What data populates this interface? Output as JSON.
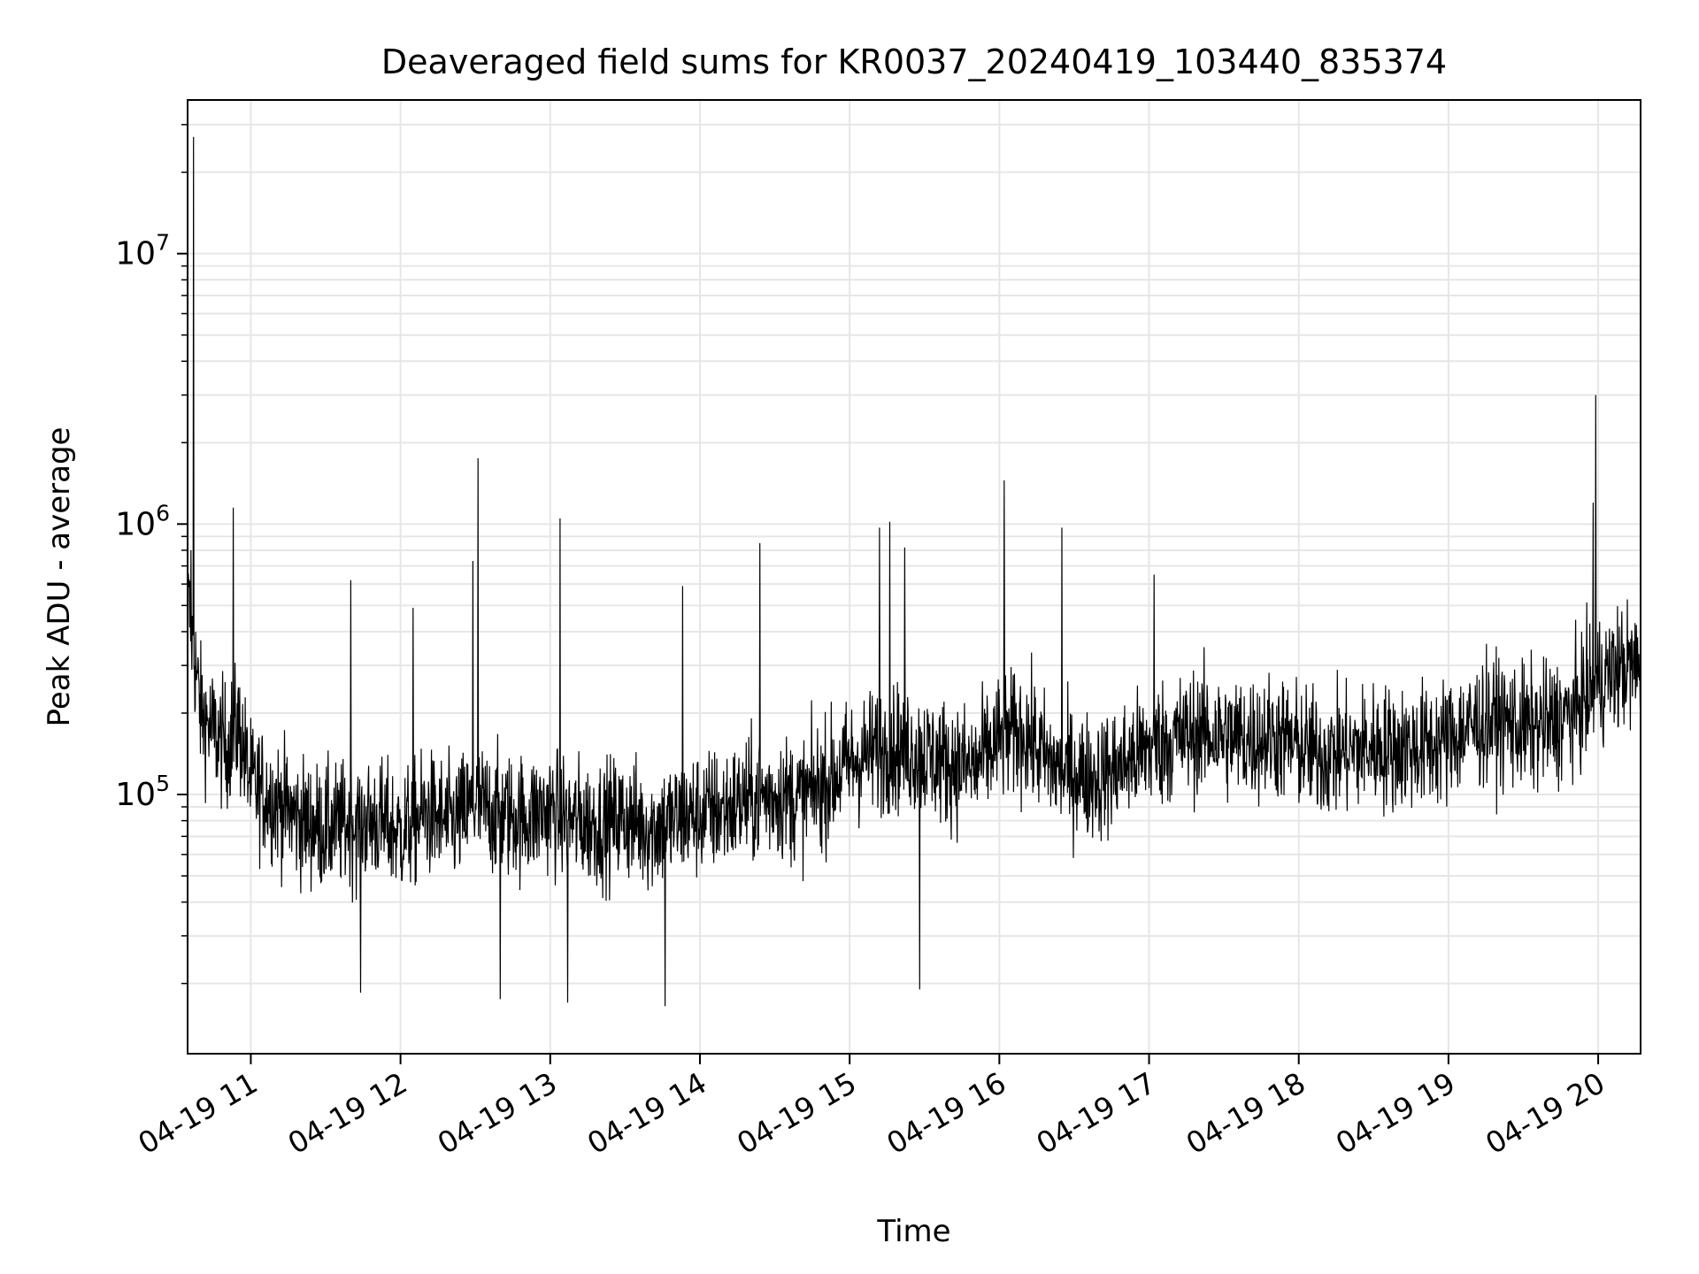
{
  "chart_data": {
    "type": "line",
    "title": "Deaveraged field sums for KR0037_20240419_103440_835374",
    "xlabel": "Time",
    "ylabel": "Peak ADU - average",
    "yscale": "log",
    "ylim": [
      11000,
      37000000
    ],
    "xlim": [
      "2024-04-19T10:34:40",
      "2024-04-19T20:17:00"
    ],
    "xticks": [
      {
        "t": "2024-04-19T11:00:00",
        "label": "04-19 11"
      },
      {
        "t": "2024-04-19T12:00:00",
        "label": "04-19 12"
      },
      {
        "t": "2024-04-19T13:00:00",
        "label": "04-19 13"
      },
      {
        "t": "2024-04-19T14:00:00",
        "label": "04-19 14"
      },
      {
        "t": "2024-04-19T15:00:00",
        "label": "04-19 15"
      },
      {
        "t": "2024-04-19T16:00:00",
        "label": "04-19 16"
      },
      {
        "t": "2024-04-19T17:00:00",
        "label": "04-19 17"
      },
      {
        "t": "2024-04-19T18:00:00",
        "label": "04-19 18"
      },
      {
        "t": "2024-04-19T19:00:00",
        "label": "04-19 19"
      },
      {
        "t": "2024-04-19T20:00:00",
        "label": "04-19 20"
      }
    ],
    "yticks": [
      {
        "v": 100000,
        "base": "10",
        "exp": "5"
      },
      {
        "v": 1000000,
        "base": "10",
        "exp": "6"
      },
      {
        "v": 10000000,
        "base": "10",
        "exp": "7"
      }
    ],
    "grid": true,
    "line_color": "#000000",
    "grid_color": "#e6e6e6",
    "series": [
      {
        "x": [
          "2024-04-19T10:35:00",
          "2024-04-19T10:40:00",
          "2024-04-19T10:45:00",
          "2024-04-19T10:50:00",
          "2024-04-19T10:55:00",
          "2024-04-19T11:00:00",
          "2024-04-19T11:10:00",
          "2024-04-19T11:20:00",
          "2024-04-19T11:30:00",
          "2024-04-19T11:40:00",
          "2024-04-19T11:50:00",
          "2024-04-19T12:00:00",
          "2024-04-19T12:10:00",
          "2024-04-19T12:20:00",
          "2024-04-19T12:30:00",
          "2024-04-19T12:40:00",
          "2024-04-19T12:50:00",
          "2024-04-19T13:00:00",
          "2024-04-19T13:10:00",
          "2024-04-19T13:20:00",
          "2024-04-19T13:30:00",
          "2024-04-19T13:40:00",
          "2024-04-19T13:50:00",
          "2024-04-19T14:00:00",
          "2024-04-19T14:10:00",
          "2024-04-19T14:20:00",
          "2024-04-19T14:30:00",
          "2024-04-19T14:40:00",
          "2024-04-19T14:50:00",
          "2024-04-19T15:00:00",
          "2024-04-19T15:10:00",
          "2024-04-19T15:20:00",
          "2024-04-19T15:30:00",
          "2024-04-19T15:40:00",
          "2024-04-19T15:50:00",
          "2024-04-19T16:00:00",
          "2024-04-19T16:10:00",
          "2024-04-19T16:20:00",
          "2024-04-19T16:30:00",
          "2024-04-19T16:40:00",
          "2024-04-19T16:50:00",
          "2024-04-19T17:00:00",
          "2024-04-19T17:10:00",
          "2024-04-19T17:20:00",
          "2024-04-19T17:30:00",
          "2024-04-19T17:40:00",
          "2024-04-19T17:50:00",
          "2024-04-19T18:00:00",
          "2024-04-19T18:10:00",
          "2024-04-19T18:20:00",
          "2024-04-19T18:30:00",
          "2024-04-19T18:40:00",
          "2024-04-19T18:50:00",
          "2024-04-19T19:00:00",
          "2024-04-19T19:10:00",
          "2024-04-19T19:20:00",
          "2024-04-19T19:30:00",
          "2024-04-19T19:40:00",
          "2024-04-19T19:50:00",
          "2024-04-19T20:00:00",
          "2024-04-19T20:10:00",
          "2024-04-19T20:17:00"
        ],
        "y": [
          500000,
          200000,
          170000,
          150000,
          180000,
          110000,
          95000,
          80000,
          75000,
          78000,
          80000,
          72000,
          85000,
          78000,
          90000,
          85000,
          82000,
          88000,
          80000,
          78000,
          82000,
          75000,
          80000,
          85000,
          88000,
          95000,
          100000,
          95000,
          110000,
          130000,
          145000,
          150000,
          140000,
          130000,
          125000,
          160000,
          170000,
          130000,
          120000,
          115000,
          130000,
          150000,
          160000,
          170000,
          165000,
          160000,
          165000,
          150000,
          140000,
          145000,
          150000,
          148000,
          150000,
          160000,
          180000,
          190000,
          175000,
          180000,
          200000,
          260000,
          300000,
          290000
        ],
        "spread": 0.55,
        "peaks": [
          {
            "t": "2024-04-19T10:37:00",
            "v": 27000000
          },
          {
            "t": "2024-04-19T10:36:00",
            "v": 800000
          },
          {
            "t": "2024-04-19T10:53:00",
            "v": 1150000
          },
          {
            "t": "2024-04-19T11:40:00",
            "v": 620000
          },
          {
            "t": "2024-04-19T12:05:00",
            "v": 490000
          },
          {
            "t": "2024-04-19T12:29:00",
            "v": 730000
          },
          {
            "t": "2024-04-19T12:31:00",
            "v": 1750000
          },
          {
            "t": "2024-04-19T13:04:00",
            "v": 1050000
          },
          {
            "t": "2024-04-19T13:53:00",
            "v": 590000
          },
          {
            "t": "2024-04-19T14:24:00",
            "v": 850000
          },
          {
            "t": "2024-04-19T15:12:00",
            "v": 970000
          },
          {
            "t": "2024-04-19T15:16:00",
            "v": 1020000
          },
          {
            "t": "2024-04-19T15:22:00",
            "v": 820000
          },
          {
            "t": "2024-04-19T16:02:00",
            "v": 1450000
          },
          {
            "t": "2024-04-19T16:25:00",
            "v": 970000
          },
          {
            "t": "2024-04-19T17:02:00",
            "v": 650000
          },
          {
            "t": "2024-04-19T19:59:00",
            "v": 3000000
          },
          {
            "t": "2024-04-19T19:58:00",
            "v": 1200000
          },
          {
            "t": "2024-04-19T15:28:00",
            "v": 19000
          },
          {
            "t": "2024-04-19T13:46:00",
            "v": 16500
          },
          {
            "t": "2024-04-19T11:44:00",
            "v": 18500
          },
          {
            "t": "2024-04-19T12:40:00",
            "v": 17500
          },
          {
            "t": "2024-04-19T13:07:00",
            "v": 17000
          }
        ]
      }
    ]
  }
}
